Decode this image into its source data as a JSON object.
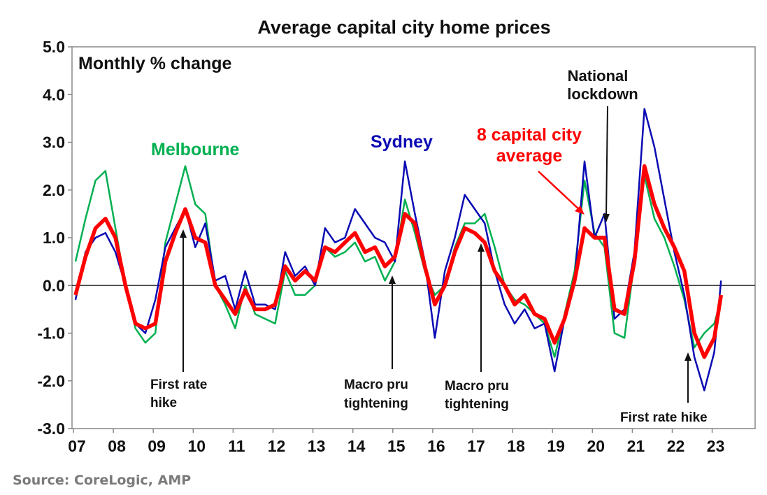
{
  "chart_data": {
    "type": "line",
    "title": "Average capital city home prices",
    "ylabel": "Monthly % change",
    "xlabel": "",
    "ylim": [
      -3.0,
      5.0
    ],
    "yticks": [
      "5.0",
      "4.0",
      "3.0",
      "2.0",
      "1.0",
      "0.0",
      "-1.0",
      "-2.0",
      "-3.0"
    ],
    "ytick_values": [
      5,
      4,
      3,
      2,
      1,
      0,
      -1,
      -2,
      -3
    ],
    "xticks": [
      "07",
      "08",
      "09",
      "10",
      "11",
      "12",
      "13",
      "14",
      "15",
      "16",
      "17",
      "18",
      "19",
      "20",
      "21",
      "22",
      "23"
    ],
    "xtick_values": [
      2007,
      2008,
      2009,
      2010,
      2011,
      2012,
      2013,
      2014,
      2015,
      2016,
      2017,
      2018,
      2019,
      2020,
      2021,
      2022,
      2023
    ],
    "xlim": [
      2007,
      2024
    ],
    "grid": false,
    "x": [
      2007.0,
      2007.25,
      2007.5,
      2007.75,
      2008.0,
      2008.25,
      2008.5,
      2008.75,
      2009.0,
      2009.25,
      2009.5,
      2009.75,
      2010.0,
      2010.25,
      2010.5,
      2010.75,
      2011.0,
      2011.25,
      2011.5,
      2011.75,
      2012.0,
      2012.25,
      2012.5,
      2012.75,
      2013.0,
      2013.25,
      2013.5,
      2013.75,
      2014.0,
      2014.25,
      2014.5,
      2014.75,
      2015.0,
      2015.25,
      2015.5,
      2015.75,
      2016.0,
      2016.25,
      2016.5,
      2016.75,
      2017.0,
      2017.25,
      2017.5,
      2017.75,
      2018.0,
      2018.25,
      2018.5,
      2018.75,
      2019.0,
      2019.25,
      2019.5,
      2019.75,
      2020.0,
      2020.25,
      2020.5,
      2020.75,
      2021.0,
      2021.25,
      2021.5,
      2021.75,
      2022.0,
      2022.25,
      2022.5,
      2022.75,
      2023.0,
      2023.17
    ],
    "series": [
      {
        "name": "Melbourne",
        "color": "#00b050",
        "values": [
          0.5,
          1.4,
          2.2,
          2.4,
          1.2,
          0.0,
          -0.9,
          -1.2,
          -1.0,
          0.9,
          1.7,
          2.5,
          1.7,
          1.5,
          0.0,
          -0.4,
          -0.9,
          0.0,
          -0.6,
          -0.7,
          -0.8,
          0.3,
          -0.2,
          -0.2,
          0.0,
          0.8,
          0.6,
          0.7,
          0.9,
          0.5,
          0.6,
          0.1,
          0.5,
          1.8,
          1.1,
          0.3,
          -0.2,
          0.0,
          0.8,
          1.3,
          1.3,
          1.5,
          0.8,
          0.0,
          -0.3,
          -0.4,
          -0.6,
          -0.8,
          -1.5,
          -0.6,
          0.3,
          2.2,
          1.1,
          0.8,
          -1.0,
          -1.1,
          0.5,
          2.3,
          1.4,
          1.0,
          0.4,
          -0.3,
          -1.3,
          -1.0,
          -0.8,
          -0.3
        ]
      },
      {
        "name": "Sydney",
        "color": "#0a0ab4",
        "values": [
          -0.3,
          0.7,
          1.0,
          1.1,
          0.7,
          0.0,
          -0.8,
          -1.0,
          -0.3,
          0.8,
          1.2,
          1.6,
          0.8,
          1.3,
          0.1,
          0.2,
          -0.5,
          0.3,
          -0.4,
          -0.4,
          -0.5,
          0.7,
          0.2,
          0.4,
          0.0,
          1.2,
          0.9,
          1.0,
          1.6,
          1.3,
          1.0,
          0.9,
          0.5,
          2.6,
          1.5,
          0.5,
          -1.1,
          0.3,
          1.0,
          1.9,
          1.6,
          1.3,
          0.3,
          -0.4,
          -0.8,
          -0.5,
          -0.9,
          -0.8,
          -1.8,
          -0.7,
          0.1,
          2.6,
          1.0,
          1.5,
          -0.7,
          -0.5,
          0.7,
          3.7,
          2.9,
          1.8,
          0.7,
          -0.2,
          -1.5,
          -2.2,
          -1.4,
          0.1
        ]
      },
      {
        "name": "8 capital city average",
        "color": "#ff0000",
        "values": [
          -0.2,
          0.6,
          1.2,
          1.4,
          1.0,
          0.0,
          -0.8,
          -0.9,
          -0.8,
          0.5,
          1.1,
          1.6,
          1.0,
          0.9,
          0.0,
          -0.3,
          -0.6,
          -0.1,
          -0.5,
          -0.5,
          -0.4,
          0.4,
          0.1,
          0.3,
          0.1,
          0.8,
          0.7,
          0.9,
          1.1,
          0.7,
          0.8,
          0.4,
          0.6,
          1.5,
          1.3,
          0.4,
          -0.4,
          0.0,
          0.7,
          1.2,
          1.1,
          0.9,
          0.3,
          0.0,
          -0.4,
          -0.2,
          -0.6,
          -0.7,
          -1.2,
          -0.7,
          0.1,
          1.2,
          1.0,
          1.0,
          -0.5,
          -0.6,
          0.5,
          2.5,
          1.7,
          1.2,
          0.8,
          0.3,
          -1.0,
          -1.5,
          -1.1,
          -0.2
        ]
      }
    ],
    "series_labels": {
      "melbourne": "Melbourne",
      "sydney": "Sydney",
      "average_line1": "8 capital city",
      "average_line2": "average"
    },
    "annotations": {
      "first_rate_hike_2009": [
        "First rate",
        "hike"
      ],
      "macro_pru_2014": [
        "Macro pru",
        "tightening"
      ],
      "macro_pru_2017": [
        "Macro pru",
        "tightening"
      ],
      "national_lockdown": [
        "National",
        "lockdown"
      ],
      "first_rate_hike_2022": [
        "First rate hike"
      ]
    }
  },
  "source": "Source: CoreLogic, AMP"
}
